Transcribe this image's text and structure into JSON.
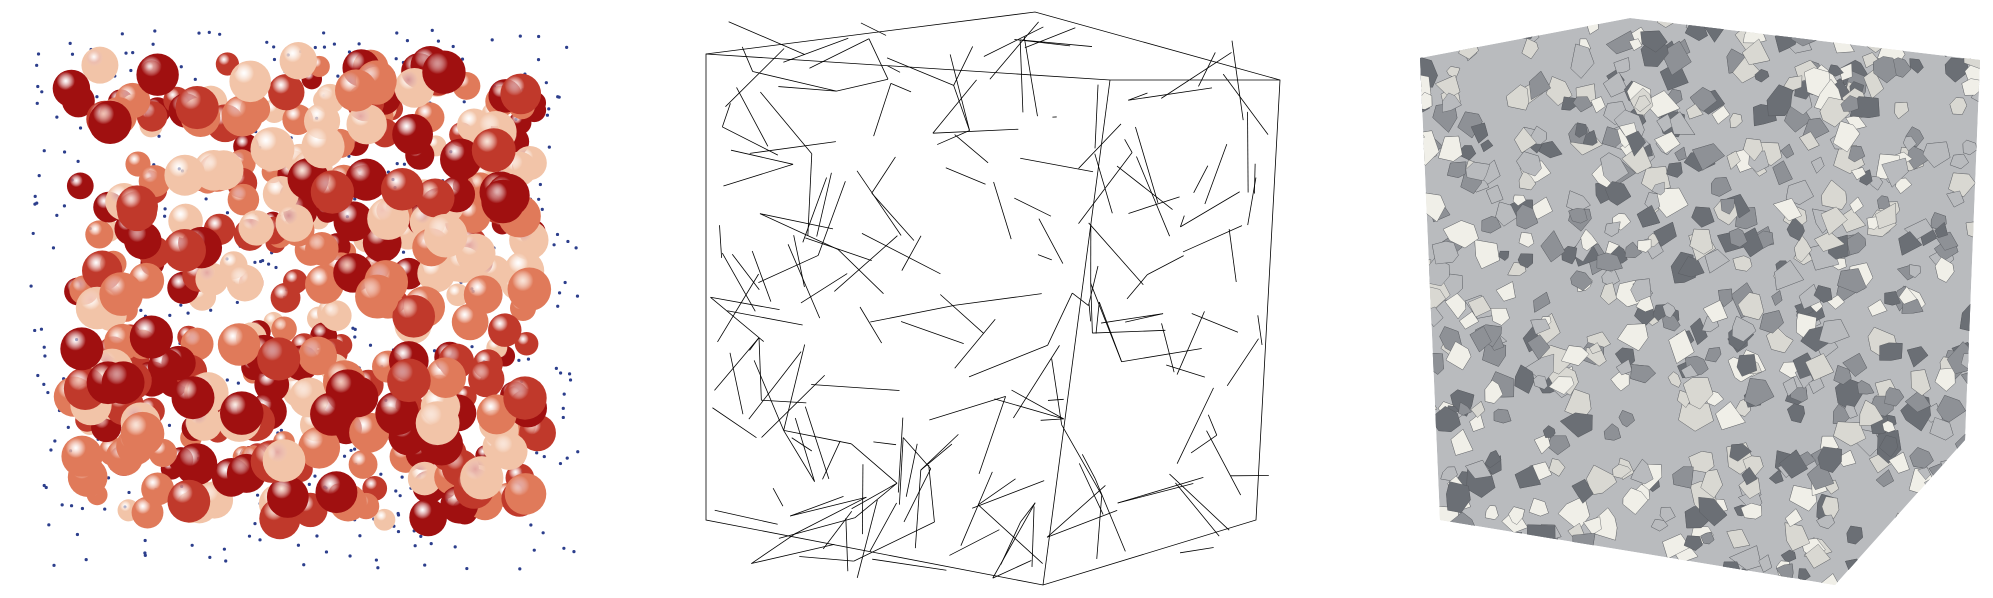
{
  "figure": {
    "panels": [
      {
        "id": "spheres",
        "description_color_scale": [
          "#f2c4a8",
          "#e07a5a",
          "#c0392b",
          "#a01010"
        ],
        "point_color": "#2c3e8c"
      },
      {
        "id": "wireframe",
        "line_color": "#000000"
      },
      {
        "id": "foam",
        "face_colors": [
          "#f0efe8",
          "#d9d8d2",
          "#b9bbbe",
          "#8e9196",
          "#6b6f75"
        ]
      }
    ]
  }
}
